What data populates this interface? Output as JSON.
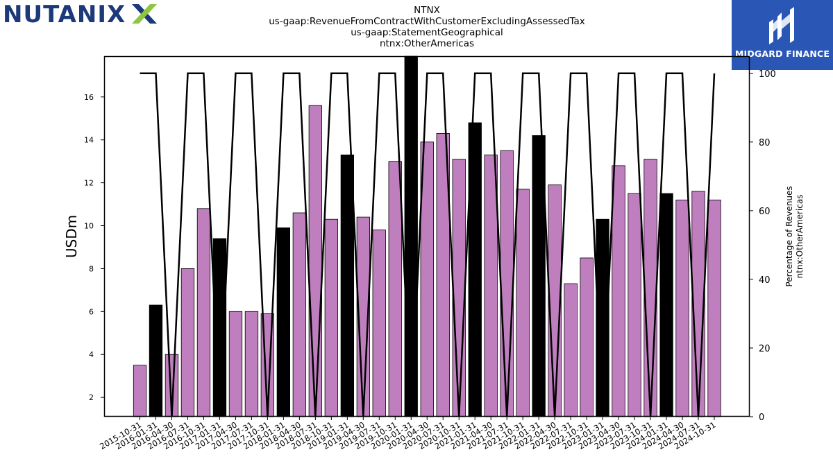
{
  "header": {
    "logo_text": "NUTANIX",
    "brand_text": "MIDGARD FINANCE",
    "title_lines": [
      "NTNX",
      "us-gaap:RevenueFromContractWithCustomerExcludingAssessedTax",
      "us-gaap:StatementGeographical",
      "ntnx:OtherAmericas"
    ]
  },
  "chart_data": {
    "type": "bar",
    "ylabel": "USDm",
    "y2label_lines": [
      "Percentage of Revenues",
      "ntnx:OtherAmericas"
    ],
    "ylim": [
      1.1,
      17.9
    ],
    "y2lim": [
      0,
      105
    ],
    "yticks": [
      2,
      4,
      6,
      8,
      10,
      12,
      14,
      16
    ],
    "y2ticks": [
      0,
      20,
      40,
      60,
      80,
      100
    ],
    "colors": {
      "quarter": "#bf7fbf",
      "fiscal_year_end": "#000000",
      "line": "#000000"
    },
    "categories": [
      "2015-10-31",
      "2016-01-31",
      "2016-04-30",
      "2016-07-31",
      "2016-10-31",
      "2017-01-31",
      "2017-04-30",
      "2017-07-31",
      "2017-10-31",
      "2018-01-31",
      "2018-04-30",
      "2018-07-31",
      "2018-10-31",
      "2019-01-31",
      "2019-04-30",
      "2019-07-31",
      "2019-10-31",
      "2020-01-31",
      "2020-04-30",
      "2020-07-31",
      "2020-10-31",
      "2021-01-31",
      "2021-04-30",
      "2021-07-31",
      "2021-10-31",
      "2022-01-31",
      "2022-04-30",
      "2022-07-31",
      "2022-10-31",
      "2023-01-31",
      "2023-04-30",
      "2023-07-31",
      "2023-10-31",
      "2024-01-31",
      "2024-04-30",
      "2024-07-31",
      "2024-10-31"
    ],
    "series": [
      {
        "values": [
          3.5,
          6.3,
          4.0,
          8.0,
          10.8,
          9.4,
          6.0,
          6.0,
          5.9,
          9.9,
          10.6,
          15.6,
          10.3,
          13.3,
          10.4,
          9.8,
          13.0,
          17.9,
          13.9,
          14.3,
          13.1,
          14.8,
          13.3,
          13.5,
          11.7,
          14.2,
          11.9,
          7.3,
          8.5,
          10.3,
          12.8,
          11.5,
          13.1,
          11.5,
          11.2,
          11.6,
          11.2
        ]
      },
      {
        "values": [
          100,
          100,
          0,
          100,
          100,
          0,
          100,
          100,
          0,
          100,
          100,
          0,
          100,
          100,
          0,
          100,
          100,
          0,
          100,
          100,
          0,
          100,
          100,
          0,
          100,
          100,
          0,
          100,
          100,
          0,
          100,
          100,
          0,
          100,
          100,
          0,
          100
        ]
      }
    ],
    "bar_kind": [
      "q",
      "y",
      "q",
      "q",
      "q",
      "y",
      "q",
      "q",
      "q",
      "y",
      "q",
      "q",
      "q",
      "y",
      "q",
      "q",
      "q",
      "y",
      "q",
      "q",
      "q",
      "y",
      "q",
      "q",
      "q",
      "y",
      "q",
      "q",
      "q",
      "y",
      "q",
      "q",
      "q",
      "y",
      "q",
      "q",
      "q"
    ]
  }
}
